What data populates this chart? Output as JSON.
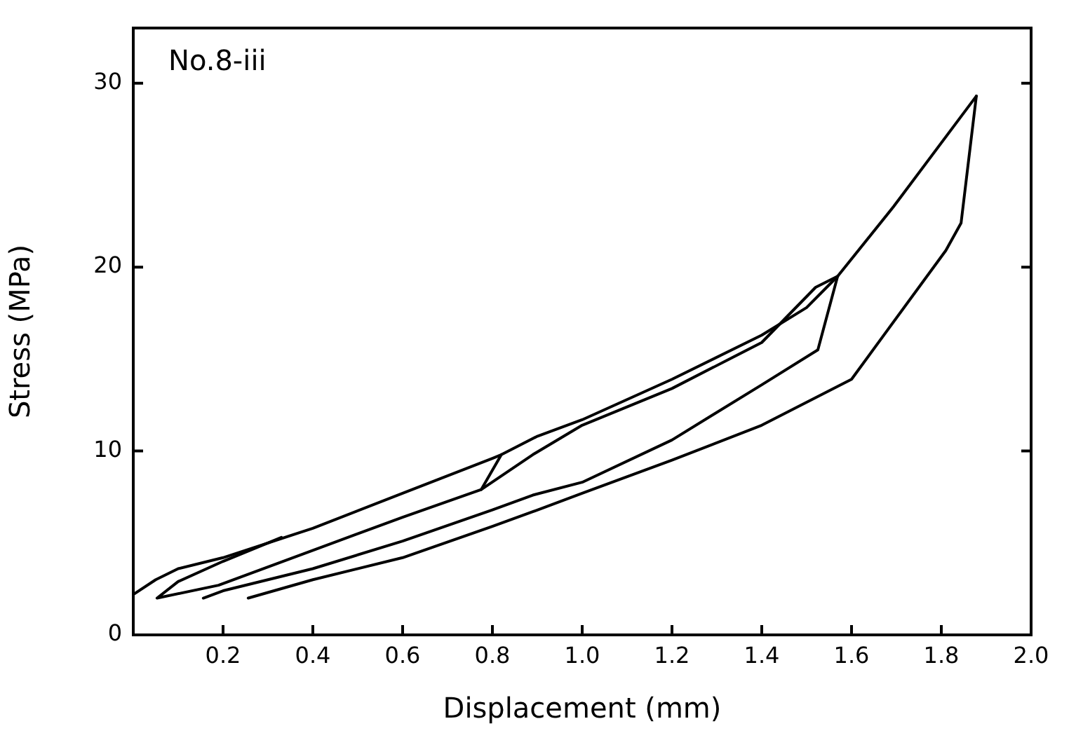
{
  "chart_data": {
    "type": "line",
    "xlabel": "Displacement (mm)",
    "ylabel": "Stress (MPa)",
    "annotations": [
      "No.8-iii"
    ],
    "xlim": [
      0,
      2.0
    ],
    "ylim": [
      0,
      33
    ],
    "xticks": [
      {
        "value": 0,
        "label": null
      },
      {
        "value": 0.2,
        "label": "0.2"
      },
      {
        "value": 0.4,
        "label": "0.4"
      },
      {
        "value": 0.6,
        "label": "0.6"
      },
      {
        "value": 0.8,
        "label": "0.8"
      },
      {
        "value": 1,
        "label": "1.0"
      },
      {
        "value": 1.2,
        "label": "1.2"
      },
      {
        "value": 1.4,
        "label": "1.4"
      },
      {
        "value": 1.6,
        "label": "1.6"
      },
      {
        "value": 1.8,
        "label": "1.8"
      },
      {
        "value": 2,
        "label": "2.0"
      }
    ],
    "yticks": [
      0,
      10,
      20,
      30
    ],
    "grid": false,
    "legend": false,
    "marker": "none",
    "line_style": "solid",
    "series": [
      {
        "color": "#000000",
        "x": [
          0,
          0.05,
          0.1,
          0.2,
          0.3,
          0.4,
          0.6,
          0.8,
          0.82,
          0.9,
          1.0,
          1.2,
          1.4,
          1.5,
          1.569,
          1.694,
          1.878
        ],
        "values": [
          2.2,
          3.0,
          3.6,
          4.2,
          5.0,
          5.8,
          7.7,
          9.6,
          9.8,
          10.8,
          11.7,
          13.9,
          16.3,
          17.8,
          19.5,
          23.3,
          29.3
        ]
      },
      {
        "color": "#000000",
        "x": [
          0.33,
          0.2,
          0.1,
          0.053,
          0.19,
          0.4,
          0.6,
          0.775,
          0.82
        ],
        "values": [
          5.3,
          4.0,
          2.9,
          2.0,
          2.7,
          4.6,
          6.4,
          7.9,
          9.8
        ]
      },
      {
        "color": "#000000",
        "x": [
          0.775,
          0.89,
          1.0,
          1.2,
          1.4,
          1.52,
          1.569
        ],
        "values": [
          7.9,
          9.8,
          11.4,
          13.4,
          15.9,
          18.9,
          19.5
        ]
      },
      {
        "color": "#000000",
        "x": [
          1.569,
          1.525,
          1.4,
          1.2,
          1.0,
          0.89,
          0.8,
          0.6,
          0.4,
          0.2,
          0.156
        ],
        "values": [
          19.5,
          15.5,
          13.6,
          10.6,
          8.3,
          7.6,
          6.8,
          5.1,
          3.6,
          2.4,
          2.0
        ]
      },
      {
        "color": "#000000",
        "x": [
          1.878,
          1.844,
          1.81,
          1.6,
          1.4,
          1.2,
          1.0,
          0.89,
          0.8,
          0.6,
          0.4,
          0.256
        ],
        "values": [
          29.3,
          22.4,
          20.9,
          13.9,
          11.4,
          9.5,
          7.7,
          6.7,
          5.9,
          4.2,
          3.0,
          2.0
        ]
      }
    ]
  }
}
